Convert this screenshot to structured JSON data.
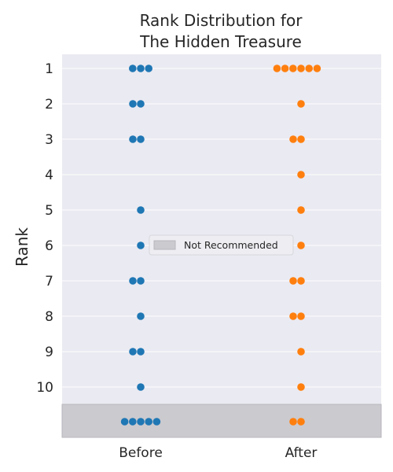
{
  "chart_data": {
    "type": "scatter",
    "title": "Rank Distribution for\nThe Hidden Treasure",
    "xlabel": "",
    "ylabel": "Rank",
    "categories": [
      "Before",
      "After"
    ],
    "y_ticks": [
      "1",
      "2",
      "3",
      "4",
      "5",
      "6",
      "7",
      "8",
      "9",
      "10"
    ],
    "ylim": [
      0.5,
      11.4
    ],
    "y_inverted": true,
    "grid": "horizontal",
    "band": {
      "label": "Not Recommended",
      "from": 10.5,
      "to": 11.4
    },
    "legend": {
      "position": "center",
      "entries": [
        "Not Recommended"
      ]
    },
    "series": [
      {
        "category": "Before",
        "color": "#1f77b4",
        "counts": {
          "1": 3,
          "2": 2,
          "3": 2,
          "4": 0,
          "5": 1,
          "6": 1,
          "7": 2,
          "8": 1,
          "9": 2,
          "10": 1,
          "not_recommended": 5
        }
      },
      {
        "category": "After",
        "color": "#ff7f0e",
        "counts": {
          "1": 6,
          "2": 1,
          "3": 2,
          "4": 1,
          "5": 1,
          "6": 1,
          "7": 2,
          "8": 2,
          "9": 1,
          "10": 1,
          "not_recommended": 2
        }
      }
    ],
    "colors": {
      "plot_background": "#eaeaf2",
      "band_fill": "#cbcacf",
      "legend_swatch": "#cbcacf",
      "grid": "#ffffff",
      "text": "#262626"
    }
  }
}
